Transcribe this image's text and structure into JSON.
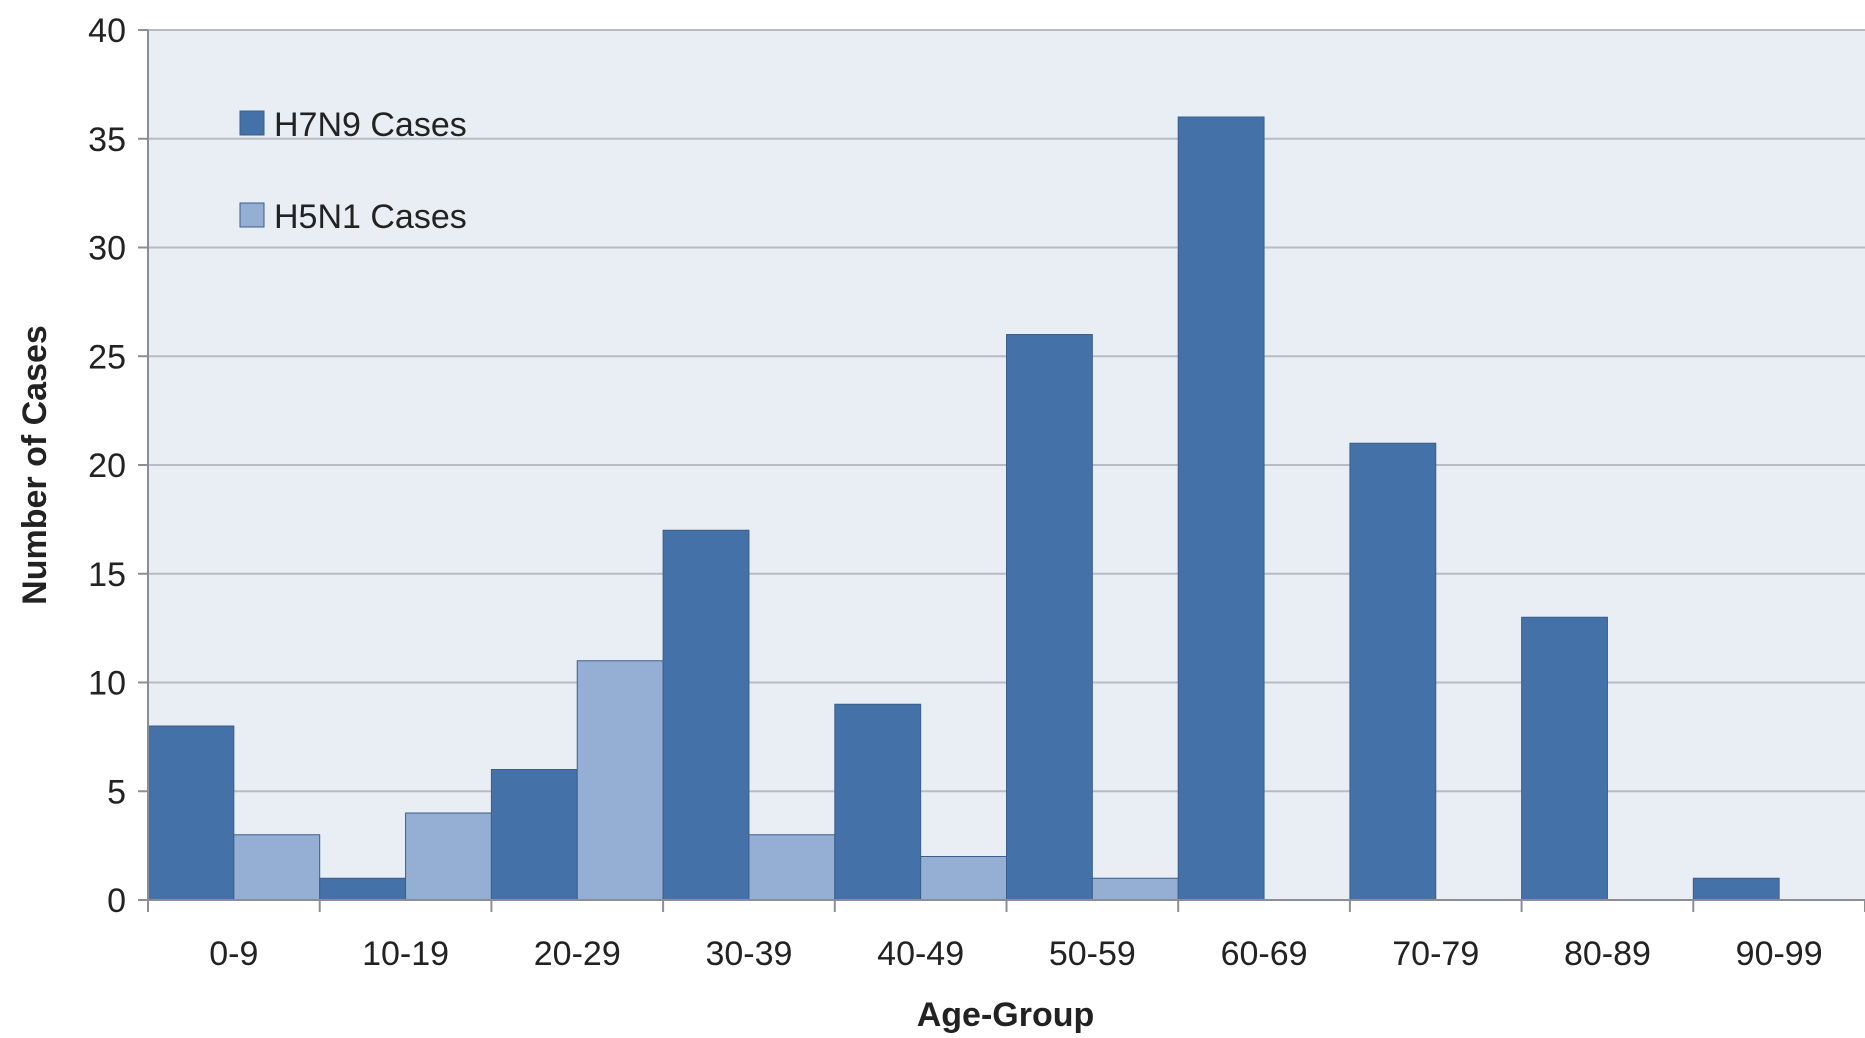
{
  "chart_data": {
    "type": "bar",
    "categories": [
      "0-9",
      "10-19",
      "20-29",
      "30-39",
      "40-49",
      "50-59",
      "60-69",
      "70-79",
      "80-89",
      "90-99"
    ],
    "series": [
      {
        "name": "H7N9 Cases",
        "values": [
          8,
          1,
          6,
          17,
          9,
          26,
          36,
          21,
          13,
          1
        ],
        "color": "#4472a8"
      },
      {
        "name": "H5N1 Cases",
        "values": [
          3,
          4,
          11,
          3,
          2,
          1,
          0,
          0,
          0,
          0
        ],
        "color": "#95aed4"
      }
    ],
    "xlabel": "Age-Group",
    "ylabel": "Number of Cases",
    "ylim": [
      0,
      40
    ],
    "yticks": [
      0,
      5,
      10,
      15,
      20,
      25,
      30,
      35,
      40
    ],
    "grid": true,
    "legend_position": "top-left",
    "plot_background": "#e9edf4",
    "gridline_color": "#b7bcc4"
  }
}
